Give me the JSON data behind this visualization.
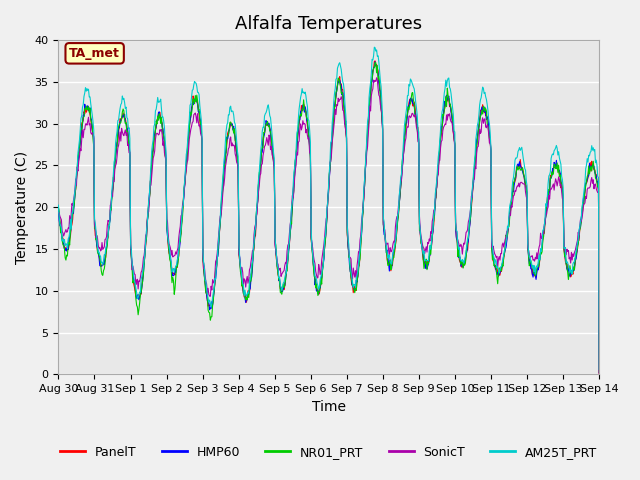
{
  "title": "Alfalfa Temperatures",
  "xlabel": "Time",
  "ylabel": "Temperature (C)",
  "annotation": "TA_met",
  "ylim": [
    0,
    40
  ],
  "series": {
    "PanelT": {
      "color": "#ff0000"
    },
    "HMP60": {
      "color": "#0000ff"
    },
    "NR01_PRT": {
      "color": "#00cc00"
    },
    "SonicT": {
      "color": "#aa00aa"
    },
    "AM25T_PRT": {
      "color": "#00cccc"
    }
  },
  "xtick_labels": [
    "Aug 30",
    "Aug 31",
    "Sep 1",
    "Sep 2",
    "Sep 3",
    "Sep 4",
    "Sep 5",
    "Sep 6",
    "Sep 7",
    "Sep 8",
    "Sep 9",
    "Sep 10",
    "Sep 11",
    "Sep 12",
    "Sep 13",
    "Sep 14"
  ],
  "background_color": "#e8e8e8",
  "grid_color": "#ffffff",
  "title_fontsize": 13,
  "axis_label_fontsize": 10,
  "tick_fontsize": 8,
  "legend_fontsize": 9
}
